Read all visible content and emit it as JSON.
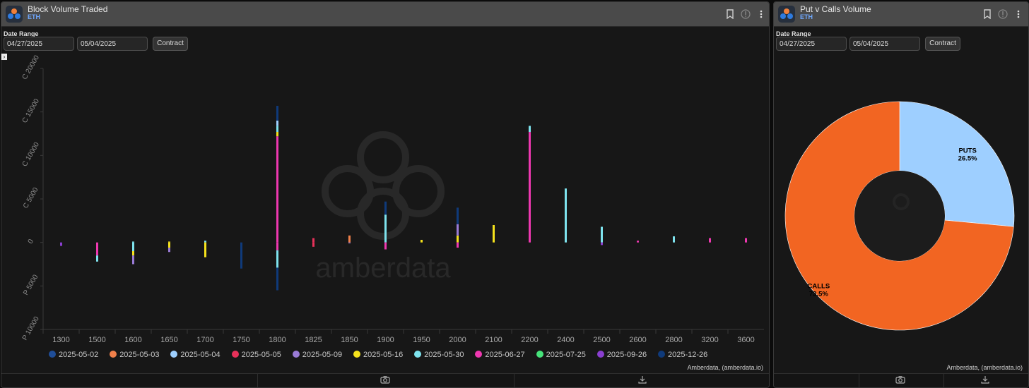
{
  "left_panel": {
    "title": "Block Volume Traded",
    "subtitle": "ETH",
    "date_range_label": "Date Range",
    "start_date": "04/27/2025",
    "end_date": "05/04/2025",
    "contract_button": "Contract",
    "credit": "Amberdata, (amberdata.io)"
  },
  "right_panel": {
    "title": "Put v Calls Volume",
    "subtitle": "ETH",
    "date_range_label": "Date Range",
    "start_date": "04/27/2025",
    "end_date": "05/04/2025",
    "contract_button": "Contract",
    "credit": "Amberdata, (amberdata.io)"
  },
  "colors": {
    "2025-05-02": "#1f4e99",
    "2025-05-03": "#f0804a",
    "2025-05-04": "#9ecfff",
    "2025-05-05": "#e8315a",
    "2025-05-09": "#9a7bd6",
    "2025-05-16": "#f5e21c",
    "2025-05-30": "#7ee3ee",
    "2025-06-27": "#ee38b0",
    "2025-07-25": "#46e37a",
    "2025-09-26": "#8a3fd0",
    "2025-12-26": "#0f3a7a"
  },
  "chart_data": [
    {
      "type": "bar",
      "stacked": true,
      "orientation": "vertical",
      "categories": [
        "1300",
        "1500",
        "1600",
        "1650",
        "1700",
        "1750",
        "1800",
        "1825",
        "1850",
        "1900",
        "1950",
        "2000",
        "2100",
        "2200",
        "2400",
        "2500",
        "2600",
        "2800",
        "3200",
        "3600"
      ],
      "yticks": [
        "C 20000",
        "C 15000",
        "C 10000",
        "C 5000",
        "0",
        "P 5000",
        "P 10000"
      ],
      "ylim": [
        -10000,
        20000
      ],
      "legend": [
        "2025-05-02",
        "2025-05-03",
        "2025-05-04",
        "2025-05-05",
        "2025-05-09",
        "2025-05-16",
        "2025-05-30",
        "2025-06-27",
        "2025-07-25",
        "2025-09-26",
        "2025-12-26"
      ],
      "stacks": [
        {
          "strike": "1300",
          "calls": [],
          "puts": [
            [
              "2025-09-26",
              400
            ]
          ]
        },
        {
          "strike": "1500",
          "calls": [],
          "puts": [
            [
              "2025-06-27",
              1500
            ],
            [
              "2025-05-30",
              700
            ]
          ]
        },
        {
          "strike": "1600",
          "calls": [
            [
              "2025-05-30",
              100
            ]
          ],
          "puts": [
            [
              "2025-05-30",
              1000
            ],
            [
              "2025-05-16",
              500
            ],
            [
              "2025-05-09",
              1000
            ]
          ]
        },
        {
          "strike": "1650",
          "calls": [
            [
              "2025-05-16",
              100
            ]
          ],
          "puts": [
            [
              "2025-05-16",
              600
            ],
            [
              "2025-05-09",
              500
            ]
          ]
        },
        {
          "strike": "1700",
          "calls": [
            [
              "2025-05-30",
              200
            ]
          ],
          "puts": [
            [
              "2025-05-16",
              1700
            ]
          ]
        },
        {
          "strike": "1750",
          "calls": [],
          "puts": [
            [
              "2025-12-26",
              3000
            ]
          ]
        },
        {
          "strike": "1800",
          "calls": [
            [
              "2025-06-27",
              12200
            ],
            [
              "2025-05-16",
              500
            ],
            [
              "2025-05-30",
              700
            ],
            [
              "2025-05-04",
              600
            ],
            [
              "2025-12-26",
              1700
            ]
          ],
          "puts": [
            [
              "2025-06-27",
              900
            ],
            [
              "2025-05-30",
              2000
            ],
            [
              "2025-12-26",
              2600
            ]
          ]
        },
        {
          "strike": "1825",
          "calls": [
            [
              "2025-05-05",
              500
            ]
          ],
          "puts": [
            [
              "2025-05-05",
              500
            ]
          ]
        },
        {
          "strike": "1850",
          "calls": [
            [
              "2025-05-03",
              800
            ]
          ],
          "puts": [
            [
              "2025-05-09",
              100
            ]
          ]
        },
        {
          "strike": "1900",
          "calls": [
            [
              "2025-05-30",
              3200
            ],
            [
              "2025-12-26",
              1500
            ]
          ],
          "puts": [
            [
              "2025-06-27",
              800
            ]
          ]
        },
        {
          "strike": "1950",
          "calls": [
            [
              "2025-05-16",
              300
            ]
          ],
          "puts": []
        },
        {
          "strike": "2000",
          "calls": [
            [
              "2025-05-16",
              800
            ],
            [
              "2025-05-09",
              1300
            ],
            [
              "2025-12-26",
              1900
            ]
          ],
          "puts": [
            [
              "2025-06-27",
              600
            ]
          ]
        },
        {
          "strike": "2100",
          "calls": [
            [
              "2025-05-16",
              2000
            ]
          ],
          "puts": []
        },
        {
          "strike": "2200",
          "calls": [
            [
              "2025-06-27",
              12700
            ],
            [
              "2025-05-30",
              700
            ]
          ],
          "puts": []
        },
        {
          "strike": "2400",
          "calls": [
            [
              "2025-05-30",
              6200
            ]
          ],
          "puts": []
        },
        {
          "strike": "2500",
          "calls": [
            [
              "2025-05-30",
              1800
            ]
          ],
          "puts": [
            [
              "2025-09-26",
              300
            ]
          ]
        },
        {
          "strike": "2600",
          "calls": [
            [
              "2025-06-27",
              200
            ]
          ],
          "puts": []
        },
        {
          "strike": "2800",
          "calls": [
            [
              "2025-05-30",
              700
            ]
          ],
          "puts": []
        },
        {
          "strike": "3200",
          "calls": [
            [
              "2025-06-27",
              500
            ]
          ],
          "puts": []
        },
        {
          "strike": "3600",
          "calls": [
            [
              "2025-06-27",
              500
            ]
          ],
          "puts": []
        }
      ]
    },
    {
      "type": "pie",
      "donut": true,
      "slices": [
        {
          "name": "PUTS",
          "value": 26.5,
          "label": "26.5%",
          "color": "#9ecfff"
        },
        {
          "name": "CALLS",
          "value": 73.5,
          "label": "73.5%",
          "color": "#f26522"
        }
      ]
    }
  ]
}
